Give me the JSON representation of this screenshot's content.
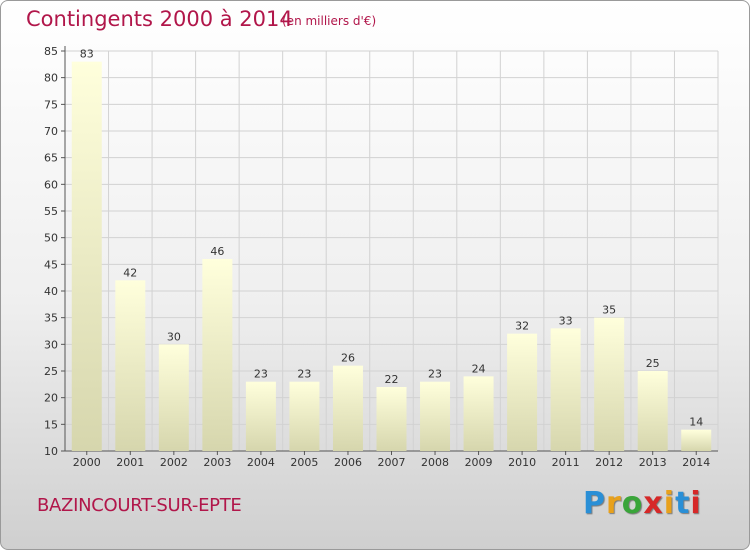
{
  "header": {
    "title": "Contingents 2000 à 2014",
    "subtitle": "(en milliers d'€)"
  },
  "footer": {
    "commune": "BAZINCOURT-SUR-EPTE",
    "logo": "Proxiti"
  },
  "colors": {
    "title": "#b1164a",
    "bar_light": "#ffffdc",
    "bar_dark": "#d6d6ad",
    "logo_letters": [
      "#2a8fd6",
      "#e8a11c",
      "#3aa53a",
      "#d62828",
      "#e8a11c",
      "#2a8fd6",
      "#d62828"
    ]
  },
  "chart_data": {
    "type": "bar",
    "title": "Contingents 2000 à 2014",
    "subtitle": "(en milliers d'€)",
    "categories": [
      "2000",
      "2001",
      "2002",
      "2003",
      "2004",
      "2005",
      "2006",
      "2007",
      "2008",
      "2009",
      "2010",
      "2011",
      "2012",
      "2013",
      "2014"
    ],
    "values": [
      83,
      42,
      30,
      46,
      23,
      23,
      26,
      22,
      23,
      24,
      32,
      33,
      35,
      25,
      14
    ],
    "ylim": [
      10,
      85
    ],
    "yticks": [
      10,
      15,
      20,
      25,
      30,
      35,
      40,
      45,
      50,
      55,
      60,
      65,
      70,
      75,
      80,
      85
    ],
    "grid": true,
    "xlabel": "",
    "ylabel": ""
  }
}
